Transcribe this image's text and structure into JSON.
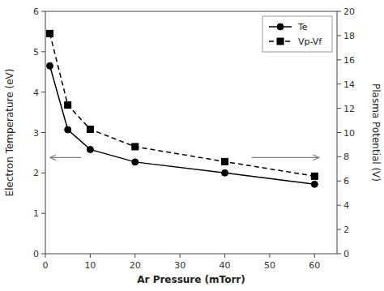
{
  "chart_data": {
    "type": "line",
    "xlabel": "Ar Pressure (mTorr)",
    "ylabel": "Electron Temperature (eV)",
    "y2label": "Plasma Potential (V)",
    "x": [
      1,
      5,
      10,
      20,
      40,
      60
    ],
    "series": [
      {
        "name": "Te",
        "color": "black",
        "marker": "circle",
        "line_style": "solid",
        "values": [
          4.65,
          3.07,
          2.58,
          2.27,
          2.0,
          1.72
        ]
      },
      {
        "name": "Vp-Vf",
        "color": "black",
        "marker": "square",
        "line_style": "dashed",
        "values": [
          5.45,
          3.68,
          3.08,
          2.65,
          2.28,
          1.92
        ]
      }
    ],
    "xlim": [
      0,
      65
    ],
    "xticks": [
      0,
      10,
      20,
      30,
      40,
      50,
      60
    ],
    "ylim": [
      0,
      6
    ],
    "yticks": [
      0,
      1,
      2,
      3,
      4,
      5,
      6
    ],
    "y2lim": [
      0,
      20
    ],
    "y2ticks": [
      0,
      2,
      4,
      6,
      8,
      10,
      12,
      14,
      16,
      18,
      20
    ],
    "arrows": [
      {
        "x_from": 8.0,
        "x_to": 1.0,
        "y": 2.38,
        "color": "gray"
      },
      {
        "x_from": 46.0,
        "x_to": 61.0,
        "y": 2.38,
        "color": "gray"
      }
    ],
    "legend": "upper right",
    "grid": false
  }
}
